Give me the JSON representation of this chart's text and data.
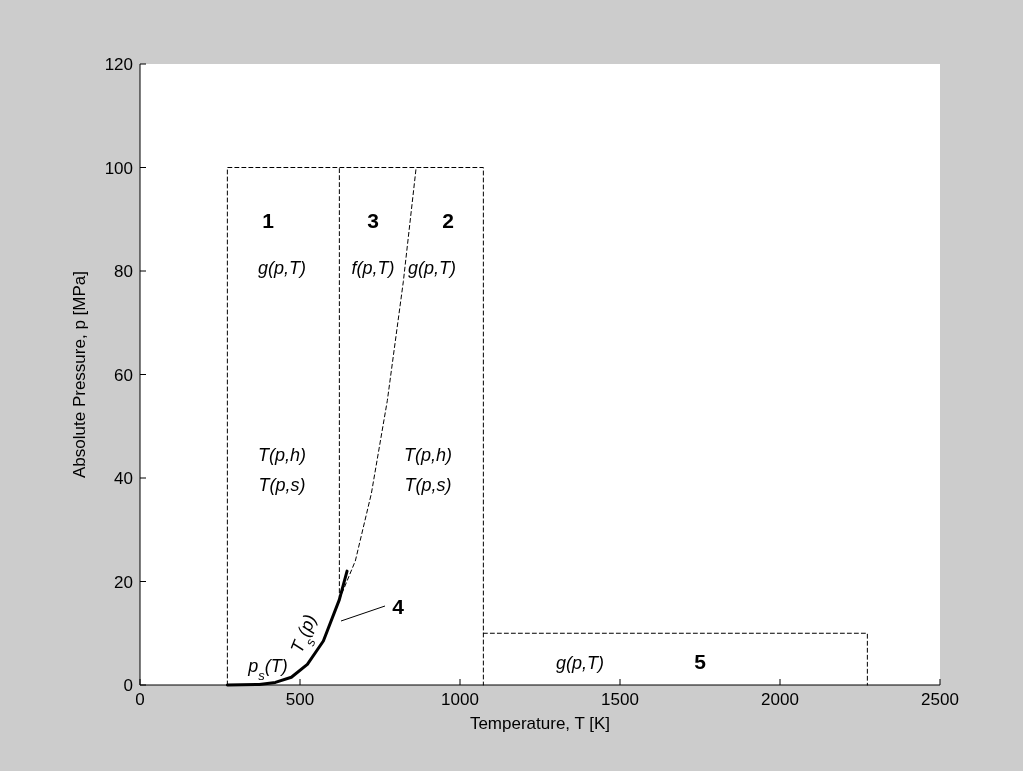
{
  "chart_data": {
    "type": "line",
    "xlabel": "Temperature, T [K]",
    "ylabel": "Absolute Pressure, p [MPa]",
    "xlim": [
      0,
      2500
    ],
    "xticks": [
      0,
      500,
      1000,
      1500,
      2000,
      2500
    ],
    "ylim": [
      0,
      120
    ],
    "yticks": [
      0,
      20,
      40,
      60,
      80,
      100,
      120
    ],
    "grid": false,
    "series": [
      {
        "color": "#000000",
        "line_style": "dashed",
        "x": [
          273,
          273,
          1073,
          1073
        ],
        "values": [
          0,
          100,
          100,
          0
        ]
      },
      {
        "color": "#000000",
        "line_style": "dashed",
        "x": [
          623,
          623
        ],
        "values": [
          16.5,
          100
        ]
      },
      {
        "color": "#000000",
        "line_style": "dashed",
        "x": [
          1073,
          2273,
          2273
        ],
        "values": [
          10,
          10,
          0
        ]
      },
      {
        "color": "#000000",
        "line_style": "dashed",
        "x": [
          623,
          673,
          723,
          773,
          823,
          863
        ],
        "values": [
          16.5,
          24,
          37,
          55,
          78,
          100
        ]
      },
      {
        "color": "#000000",
        "line_style": "solid",
        "x": [
          273,
          373,
          423,
          473,
          523,
          573,
          623,
          647
        ],
        "values": [
          0,
          0.1,
          0.5,
          1.5,
          4,
          8.5,
          16.5,
          22
        ]
      }
    ],
    "annotations": [
      "1",
      "3",
      "2",
      "g(p,T)",
      "f(p,T)",
      "g(p,T)",
      "T(p,h)",
      "T(p,s)",
      "T(p,h)",
      "T(p,s)",
      "g(p,T)",
      "5",
      "4",
      "p$_{s}$(T)",
      "T$_{s}$(p)"
    ]
  }
}
